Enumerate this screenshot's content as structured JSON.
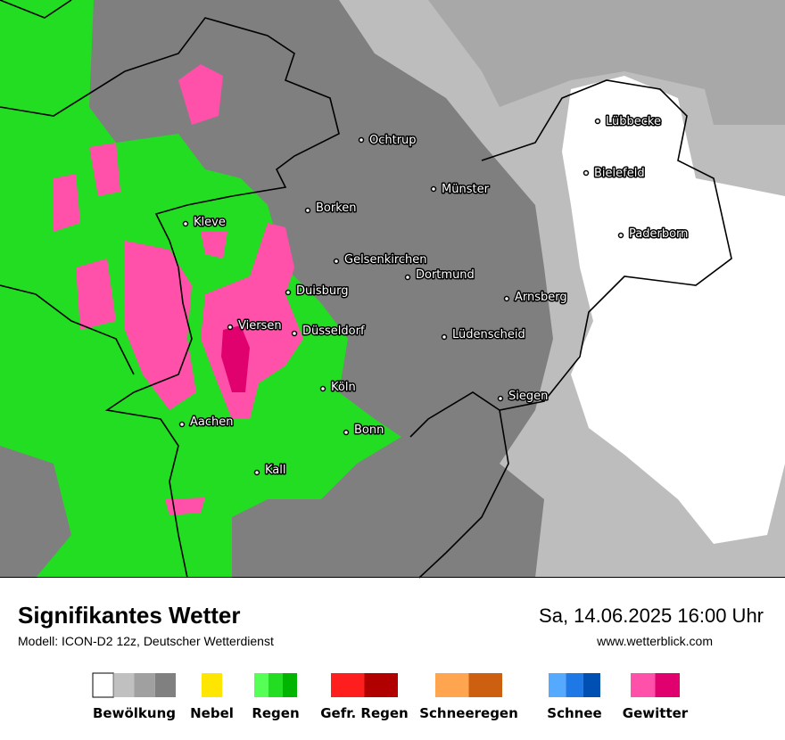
{
  "map": {
    "cities": [
      "Lübbecke",
      "Ochtrup",
      "Bielefeld",
      "Münster",
      "Borken",
      "Kleve",
      "Paderborn",
      "Gelsenkirchen",
      "Dortmund",
      "Duisburg",
      "Arnsberg",
      "Viersen",
      "Düsseldorf",
      "Lüdenscheid",
      "Köln",
      "Siegen",
      "Aachen",
      "Bonn",
      "Kall"
    ]
  },
  "footer": {
    "title": "Signifikantes Wetter",
    "model": "Modell: ICON-D2 12z, Deutscher Wetterdienst",
    "datetime": "Sa, 14.06.2025 16:00 Uhr",
    "website": "www.wetterblick.com"
  },
  "legend": [
    {
      "label": "Bewölkung",
      "colors": [
        "#ffffff",
        "#c0c0c0",
        "#a0a0a0",
        "#808080"
      ]
    },
    {
      "label": "Nebel",
      "colors": [
        "#ffe600"
      ]
    },
    {
      "label": "Regen",
      "colors": [
        "#55ff55",
        "#22dd22",
        "#00b400"
      ]
    },
    {
      "label": "Gefr. Regen",
      "colors": [
        "#ff1e1e",
        "#b00000"
      ]
    },
    {
      "label": "Schneeregen",
      "colors": [
        "#ffa550",
        "#cc6010"
      ]
    },
    {
      "label": "Schnee",
      "colors": [
        "#55aaff",
        "#1e78e6",
        "#0050b4"
      ]
    },
    {
      "label": "Gewitter",
      "colors": [
        "#ff50aa",
        "#e0006e"
      ]
    }
  ]
}
